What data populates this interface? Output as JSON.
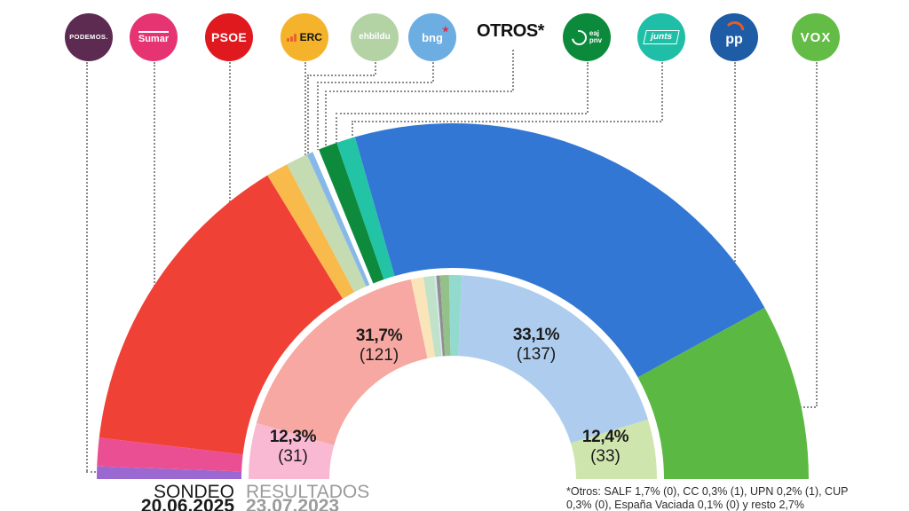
{
  "legend": {
    "items": [
      {
        "id": "podemos",
        "label": "PODEMOS.",
        "shape": "circle",
        "bg": "#5d2b52",
        "fg": "#ffffff"
      },
      {
        "id": "sumar",
        "label": "Sumar",
        "shape": "circle",
        "bg": "#e63473",
        "fg": "#ffffff"
      },
      {
        "id": "psoe",
        "label": "PSOE",
        "shape": "circle",
        "bg": "#e0191f",
        "fg": "#ffffff"
      },
      {
        "id": "erc",
        "label": "ERC",
        "shape": "circle",
        "bg": "#f4b32a",
        "fg": "#141414"
      },
      {
        "id": "ehbildu",
        "label": "ehbildu",
        "shape": "circle",
        "bg": "#b3d3a5",
        "fg": "#ffffff"
      },
      {
        "id": "bng",
        "label": "bng",
        "shape": "circle",
        "bg": "#6cade2",
        "fg": "#ffffff"
      },
      {
        "id": "otros",
        "label": "OTROS*",
        "shape": "text",
        "bg": "",
        "fg": "#111111"
      },
      {
        "id": "eaj-pnv",
        "label": "eaj pnv",
        "shape": "circle",
        "bg": "#0c8a3c",
        "fg": "#ffffff"
      },
      {
        "id": "junts",
        "label": "junts",
        "shape": "circle",
        "bg": "#1fbfa7",
        "fg": "#ffffff"
      },
      {
        "id": "pp",
        "label": "pp",
        "shape": "circle",
        "bg": "#1e5ca6",
        "fg": "#ffffff"
      },
      {
        "id": "vox",
        "label": "VOX",
        "shape": "circle",
        "bg": "#63bc46",
        "fg": "#ffffff"
      }
    ]
  },
  "bottom": {
    "sondeo_label": "SONDEO",
    "sondeo_date": "20.06.2025",
    "resultados_label": "RESULTADOS",
    "resultados_date": "23.07.2023"
  },
  "footnote": {
    "line1": "*Otros: SALF 1,7% (0), CC 0,3% (1), UPN 0,2% (1), CUP",
    "line2": "0,3% (0), España Vaciada 0,1% (0) y resto 2,7%"
  },
  "chart_data": {
    "type": "donut",
    "shape": "semicircle-double-ring",
    "total_seats": 350,
    "rings": [
      {
        "name": "SONDEO (outer ring, seats estimated from arc angles)",
        "segments": [
          {
            "party": "Podemos",
            "seats": 4,
            "color": "#9a68d0"
          },
          {
            "party": "Sumar",
            "seats": 9,
            "color": "#ea4f93"
          },
          {
            "party": "PSOE",
            "seats": 101,
            "color": "#f04137"
          },
          {
            "party": "ERC",
            "seats": 7,
            "color": "#f8ba4b"
          },
          {
            "party": "EH Bildu",
            "seats": 7,
            "color": "#c5dcb2"
          },
          {
            "party": "BNG",
            "seats": 2,
            "color": "#88b8e8"
          },
          {
            "party": "Otros",
            "seats": 2,
            "color": "#ffffff"
          },
          {
            "party": "EAJ-PNV",
            "seats": 6,
            "color": "#0d8a3c"
          },
          {
            "party": "Junts",
            "seats": 6,
            "color": "#23c3a6"
          },
          {
            "party": "PP",
            "seats": 150,
            "color": "#3377d4"
          },
          {
            "party": "VOX",
            "seats": 56,
            "color": "#5bb943"
          }
        ]
      },
      {
        "name": "RESULTADOS 23.07.2023 (inner ring)",
        "segments": [
          {
            "party": "Sumar",
            "seats": 31,
            "color": "#f9b9d2"
          },
          {
            "party": "PSOE",
            "seats": 121,
            "color": "#f8a8a2"
          },
          {
            "party": "ERC",
            "seats": 7,
            "color": "#fae4ba"
          },
          {
            "party": "EH Bildu",
            "seats": 6,
            "color": "#bfe2c8"
          },
          {
            "party": "BNG",
            "seats": 1,
            "color": "#d8e7f6"
          },
          {
            "party": "Otros",
            "seats": 2,
            "color": "#8f8f8f"
          },
          {
            "party": "EAJ-PNV",
            "seats": 5,
            "color": "#94c08a"
          },
          {
            "party": "Junts",
            "seats": 7,
            "color": "#92dacd"
          },
          {
            "party": "PP",
            "seats": 137,
            "color": "#aecdee"
          },
          {
            "party": "VOX",
            "seats": 33,
            "color": "#cfe5ae"
          }
        ]
      }
    ],
    "labels": [
      {
        "party": "PSOE",
        "percent": "31,7%",
        "seats": "(121)"
      },
      {
        "party": "Sumar",
        "percent": "12,3%",
        "seats": "(31)"
      },
      {
        "party": "PP",
        "percent": "33,1%",
        "seats": "(137)"
      },
      {
        "party": "VOX",
        "percent": "12,4%",
        "seats": "(33)"
      }
    ]
  }
}
